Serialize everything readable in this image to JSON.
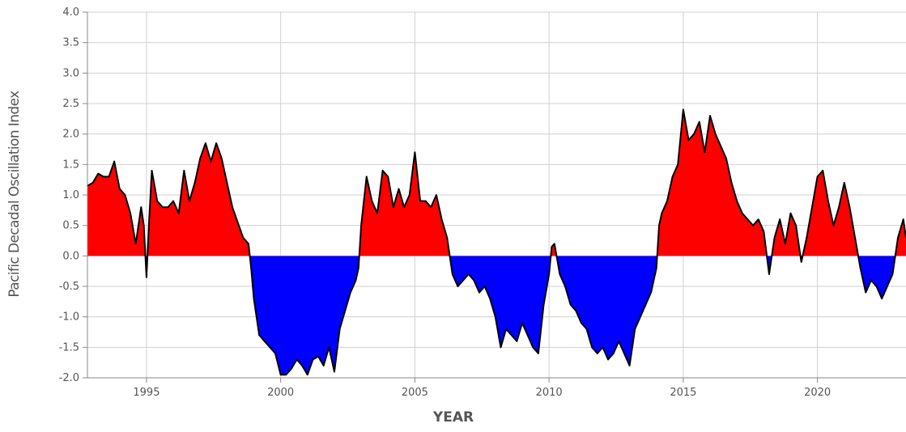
{
  "chart_data": {
    "type": "area",
    "xlabel": "YEAR",
    "ylabel": "Pacific Decadal Oscillation Index",
    "xlim": [
      1992.8,
      2023.3
    ],
    "ylim": [
      -2.0,
      4.0
    ],
    "x_ticks": [
      1995,
      2000,
      2005,
      2010,
      2015,
      2020
    ],
    "y_ticks": [
      "4.0",
      "3.5",
      "3.0",
      "2.5",
      "2.0",
      "1.5",
      "1.0",
      "0.5",
      "0.0",
      "-0.5",
      "-1.0",
      "-1.5",
      "-2.0"
    ],
    "grid": true,
    "colors": {
      "positive": "#ff0000",
      "negative": "#0000ff",
      "outline": "#000000",
      "grid": "#d0d0d0",
      "axis": "#888888"
    },
    "series": [
      {
        "x": [
          1992.8,
          1993.0,
          1993.2,
          1993.4,
          1993.6,
          1993.8,
          1994.0,
          1994.2,
          1994.4,
          1994.6,
          1994.8,
          1994.9,
          1995.0,
          1995.1,
          1995.2,
          1995.4,
          1995.6,
          1995.8,
          1996.0,
          1996.2,
          1996.4,
          1996.6,
          1996.8,
          1997.0,
          1997.2,
          1997.4,
          1997.6,
          1997.8,
          1998.0,
          1998.2,
          1998.4,
          1998.6,
          1998.8,
          1998.9,
          1999.0,
          1999.2,
          1999.4,
          1999.6,
          1999.8,
          2000.0,
          2000.2,
          2000.4,
          2000.6,
          2000.8,
          2001.0,
          2001.2,
          2001.4,
          2001.6,
          2001.8,
          2002.0,
          2002.2,
          2002.4,
          2002.6,
          2002.8,
          2002.9,
          2003.0,
          2003.2,
          2003.4,
          2003.6,
          2003.8,
          2004.0,
          2004.2,
          2004.4,
          2004.6,
          2004.8,
          2005.0,
          2005.2,
          2005.4,
          2005.6,
          2005.8,
          2006.0,
          2006.2,
          2006.4,
          2006.6,
          2006.8,
          2007.0,
          2007.2,
          2007.4,
          2007.6,
          2007.8,
          2008.0,
          2008.2,
          2008.4,
          2008.6,
          2008.8,
          2009.0,
          2009.2,
          2009.4,
          2009.6,
          2009.8,
          2010.0,
          2010.1,
          2010.2,
          2010.4,
          2010.6,
          2010.8,
          2011.0,
          2011.2,
          2011.4,
          2011.6,
          2011.8,
          2012.0,
          2012.2,
          2012.4,
          2012.6,
          2012.8,
          2013.0,
          2013.2,
          2013.4,
          2013.6,
          2013.8,
          2014.0,
          2014.1,
          2014.2,
          2014.4,
          2014.6,
          2014.8,
          2015.0,
          2015.2,
          2015.4,
          2015.6,
          2015.8,
          2016.0,
          2016.2,
          2016.4,
          2016.6,
          2016.8,
          2017.0,
          2017.2,
          2017.4,
          2017.6,
          2017.8,
          2018.0,
          2018.2,
          2018.4,
          2018.6,
          2018.8,
          2019.0,
          2019.2,
          2019.4,
          2019.6,
          2019.8,
          2020.0,
          2020.2,
          2020.4,
          2020.6,
          2020.8,
          2021.0,
          2021.2,
          2021.4,
          2021.6,
          2021.8,
          2022.0,
          2022.2,
          2022.4,
          2022.6,
          2022.8,
          2023.0,
          2023.2,
          2023.3
        ],
        "y": [
          1.15,
          1.2,
          1.35,
          1.3,
          1.3,
          1.55,
          1.1,
          1.0,
          0.7,
          0.2,
          0.8,
          0.5,
          -0.35,
          0.6,
          1.4,
          0.9,
          0.8,
          0.8,
          0.9,
          0.7,
          1.4,
          0.9,
          1.2,
          1.6,
          1.85,
          1.55,
          1.85,
          1.6,
          1.2,
          0.8,
          0.55,
          0.3,
          0.2,
          -0.2,
          -0.7,
          -1.3,
          -1.4,
          -1.5,
          -1.6,
          -1.95,
          -1.95,
          -1.85,
          -1.7,
          -1.8,
          -1.95,
          -1.7,
          -1.65,
          -1.8,
          -1.5,
          -1.9,
          -1.2,
          -0.9,
          -0.6,
          -0.4,
          -0.2,
          0.5,
          1.3,
          0.9,
          0.7,
          1.4,
          1.3,
          0.8,
          1.1,
          0.8,
          1.0,
          1.7,
          0.9,
          0.9,
          0.8,
          1.0,
          0.6,
          0.3,
          -0.3,
          -0.5,
          -0.4,
          -0.3,
          -0.4,
          -0.6,
          -0.5,
          -0.7,
          -1.0,
          -1.5,
          -1.2,
          -1.3,
          -1.4,
          -1.1,
          -1.3,
          -1.5,
          -1.6,
          -0.8,
          -0.3,
          0.15,
          0.2,
          -0.3,
          -0.5,
          -0.8,
          -0.9,
          -1.1,
          -1.2,
          -1.5,
          -1.6,
          -1.5,
          -1.7,
          -1.6,
          -1.4,
          -1.6,
          -1.8,
          -1.2,
          -1.0,
          -0.8,
          -0.6,
          -0.2,
          0.5,
          0.7,
          0.9,
          1.3,
          1.5,
          2.4,
          1.9,
          2.0,
          2.2,
          1.7,
          2.3,
          2.0,
          1.8,
          1.6,
          1.2,
          0.9,
          0.7,
          0.6,
          0.5,
          0.6,
          0.4,
          -0.3,
          0.3,
          0.6,
          0.2,
          0.7,
          0.5,
          -0.1,
          0.3,
          0.8,
          1.3,
          1.4,
          0.9,
          0.5,
          0.8,
          1.2,
          0.8,
          0.3,
          -0.2,
          -0.6,
          -0.4,
          -0.5,
          -0.7,
          -0.5,
          -0.3,
          0.3,
          0.6,
          0.3
        ]
      }
    ]
  }
}
